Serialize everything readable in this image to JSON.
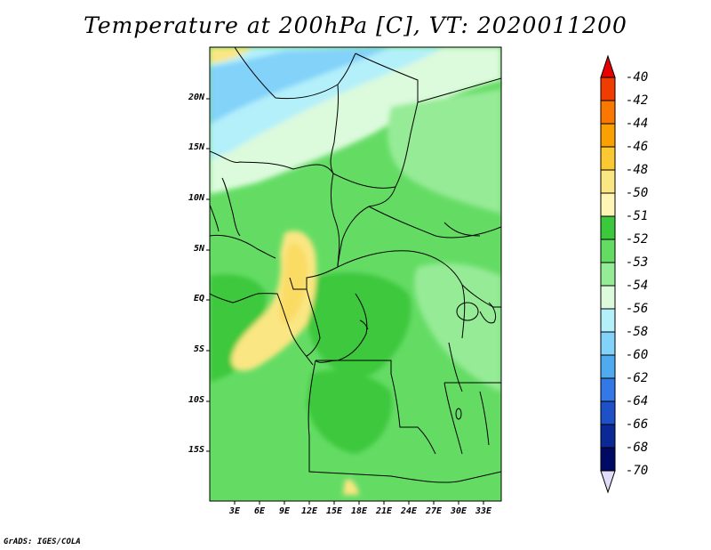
{
  "title": "Temperature at 200hPa [C], VT: 2020011200",
  "credit": "GrADS: IGES/COLA",
  "map": {
    "lat_labels": [
      "20N",
      "15N",
      "10N",
      "5N",
      "EQ",
      "5S",
      "10S",
      "15S"
    ],
    "lon_labels": [
      "3E",
      "6E",
      "9E",
      "12E",
      "15E",
      "18E",
      "21E",
      "24E",
      "27E",
      "30E",
      "33E"
    ],
    "colors": {
      "land_border": "#000000",
      "frame": "#000000"
    }
  },
  "colorbar": {
    "labels": [
      "-40",
      "-42",
      "-44",
      "-46",
      "-48",
      "-50",
      "-51",
      "-52",
      "-53",
      "-54",
      "-56",
      "-58",
      "-60",
      "-62",
      "-64",
      "-66",
      "-68",
      "-70"
    ],
    "colors": [
      "#c80000",
      "#f03c00",
      "#fa7800",
      "#faa000",
      "#fac832",
      "#fae682",
      "#fff5b4",
      "#3cc83c",
      "#64dc64",
      "#96eb96",
      "#dcfadc",
      "#b4f0fa",
      "#82d2fa",
      "#50aaf0",
      "#3278e6",
      "#1e50c8",
      "#0a2896",
      "#000a64"
    ],
    "top_arrow_color": "#e60000",
    "bottom_arrow_color": "#e1dcfa"
  }
}
